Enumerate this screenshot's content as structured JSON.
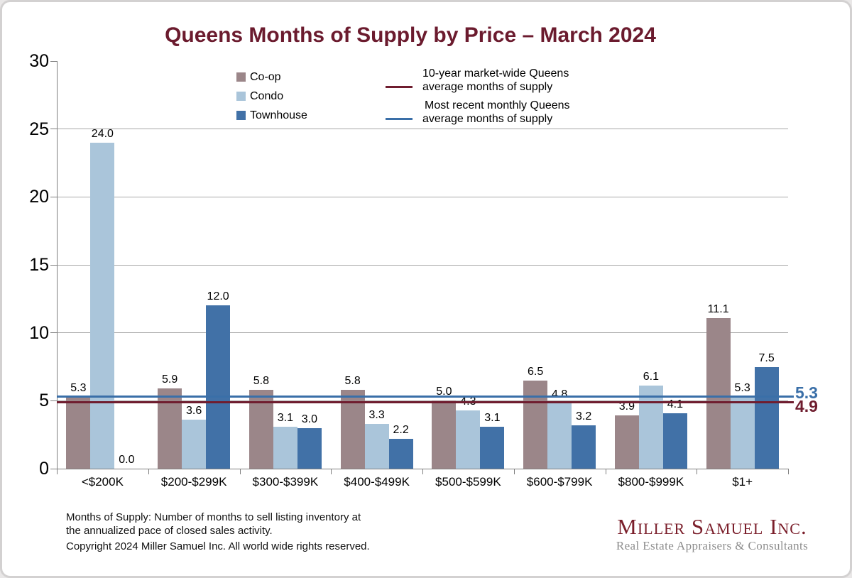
{
  "title": "Queens Months of Supply by Price – March 2024",
  "chart_data": {
    "type": "bar",
    "title": "Queens Months of Supply by Price – March 2024",
    "categories": [
      "<$200K",
      "$200-$299K",
      "$300-$399K",
      "$400-$499K",
      "$500-$599K",
      "$600-$799K",
      "$800-$999K",
      "$1+"
    ],
    "series": [
      {
        "name": "Co-op",
        "color": "#9b8689",
        "values": [
          5.3,
          5.9,
          5.8,
          5.8,
          5.0,
          6.5,
          3.9,
          11.1
        ]
      },
      {
        "name": "Condo",
        "color": "#aac5da",
        "values": [
          24.0,
          3.6,
          3.1,
          3.3,
          4.3,
          4.8,
          6.1,
          5.3
        ]
      },
      {
        "name": "Townhouse",
        "color": "#4171a7",
        "values": [
          0.0,
          12.0,
          3.0,
          2.2,
          3.1,
          3.2,
          4.1,
          7.5
        ]
      }
    ],
    "ylim": [
      0,
      30
    ],
    "ytick_step": 5,
    "grid": "horizontal",
    "value_labels": true,
    "legend_position": "top",
    "reference_lines": [
      {
        "name": "ten-year-average",
        "label_line1": "10-year market-wide Queens",
        "label_line2": "average months of supply",
        "value": 4.9,
        "display": "4.9",
        "color": "#6f1d2f"
      },
      {
        "name": "recent-monthly-average",
        "label_line1": "Most recent monthly Queens",
        "label_line2": "average months of supply",
        "value": 5.3,
        "display": "5.3",
        "color": "#3a6fa8"
      }
    ]
  },
  "footnote": {
    "line1": "Months of Supply: Number of months to sell listing inventory at",
    "line2": "the annualized pace of closed sales activity.",
    "copyright": "Copyright 2024 Miller Samuel Inc.  All world wide rights reserved."
  },
  "logo": {
    "name": "Miller Samuel Inc.",
    "tagline": "Real Estate Appraisers & Consultants"
  }
}
